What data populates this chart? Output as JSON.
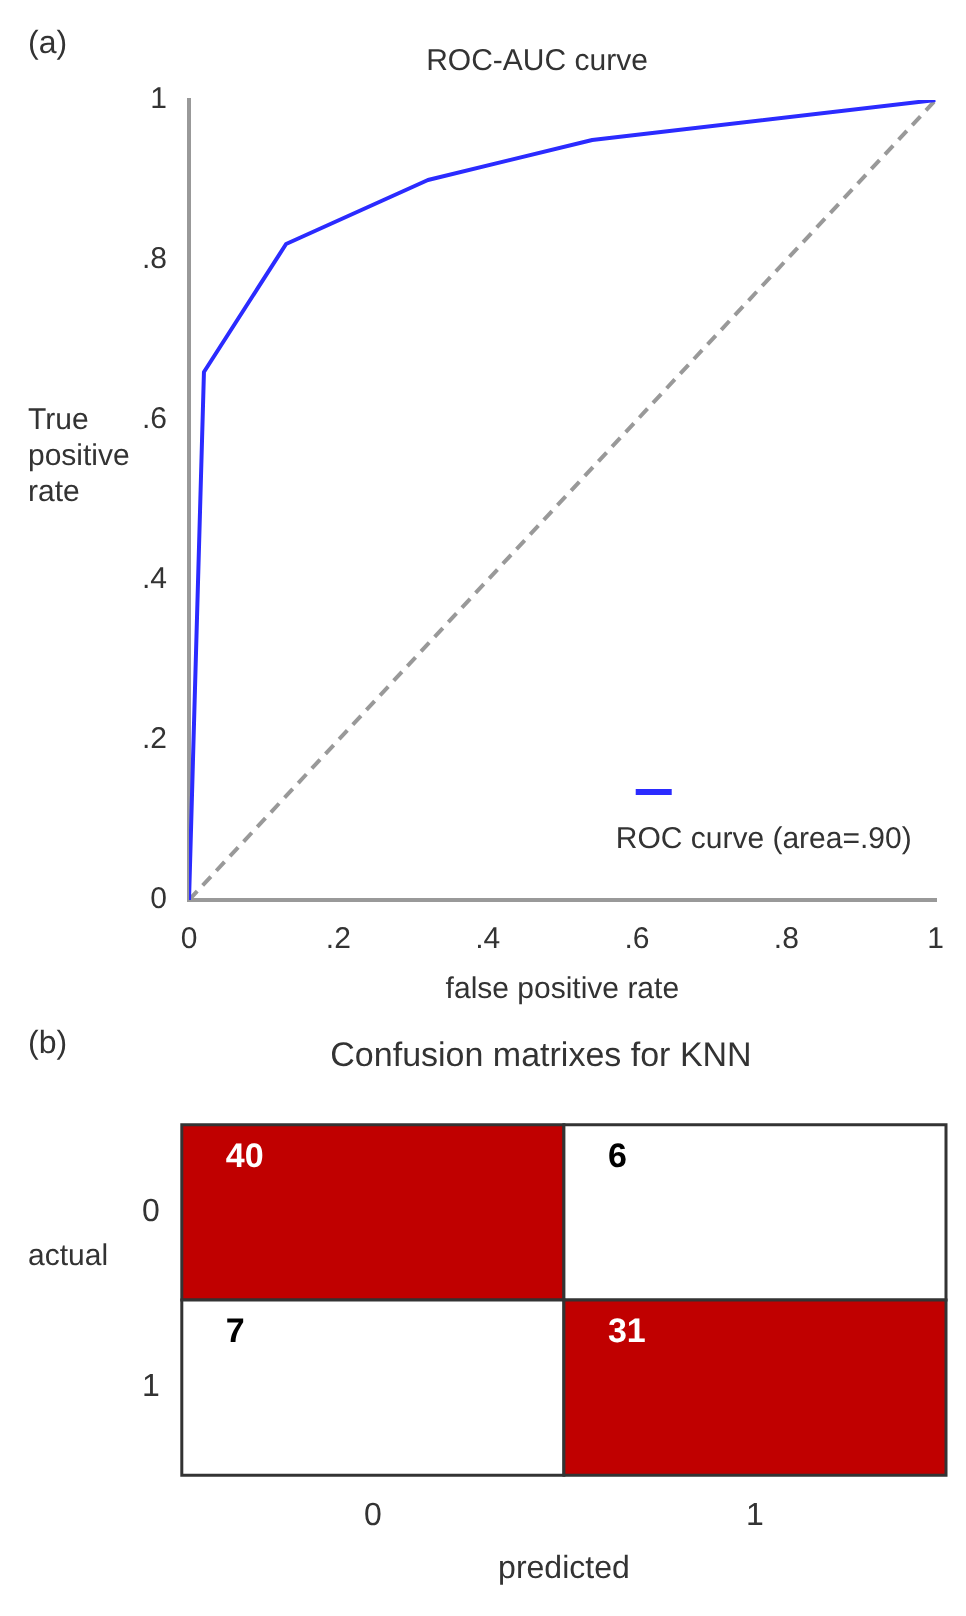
{
  "chart_data": [
    {
      "type": "line",
      "title": "ROC-AUC curve",
      "xlabel": "false positive rate",
      "ylabel": "True positive rate",
      "annotations": [
        "(a)"
      ],
      "xlim": [
        0,
        1
      ],
      "ylim": [
        0,
        1
      ],
      "xticks": [
        0,
        {
          "value": 0.2,
          "label": ".2"
        },
        {
          "value": 0.4,
          "label": ".4"
        },
        {
          "value": 0.6,
          "label": ".6"
        },
        {
          "value": 0.8,
          "label": ".8"
        },
        1
      ],
      "yticks": [
        0,
        {
          "value": 0.2,
          "label": ".2"
        },
        {
          "value": 0.4,
          "label": ".4"
        },
        {
          "value": 0.6,
          "label": ".6"
        },
        {
          "value": 0.8,
          "label": ".8"
        },
        1
      ],
      "grid": false,
      "legend": "bottom right",
      "marker": "none",
      "series": [
        {
          "name": "ROC curve (area=.90)",
          "color": "#2b2bff",
          "line_style": "solid",
          "x": [
            0,
            0.02,
            0.13,
            0.32,
            0.54,
            1
          ],
          "values": [
            0,
            0.66,
            0.82,
            0.9,
            0.95,
            1
          ]
        },
        {
          "color": "#999999",
          "line_style": "dashed",
          "x": [
            0,
            1
          ],
          "values": [
            0,
            1
          ]
        }
      ]
    },
    {
      "type": "heatmap",
      "title": "Confusion matrixes for KNN",
      "xlabel": "predicted",
      "ylabel": "actual",
      "annotations": [
        "(b)"
      ],
      "categories": [
        "0",
        "1"
      ],
      "y_categories": [
        "0",
        "1"
      ],
      "cells": [
        [
          40,
          6
        ],
        [
          7,
          31
        ]
      ],
      "colors": [
        "#ffffff",
        "#c00000"
      ],
      "data_labels": true
    }
  ]
}
